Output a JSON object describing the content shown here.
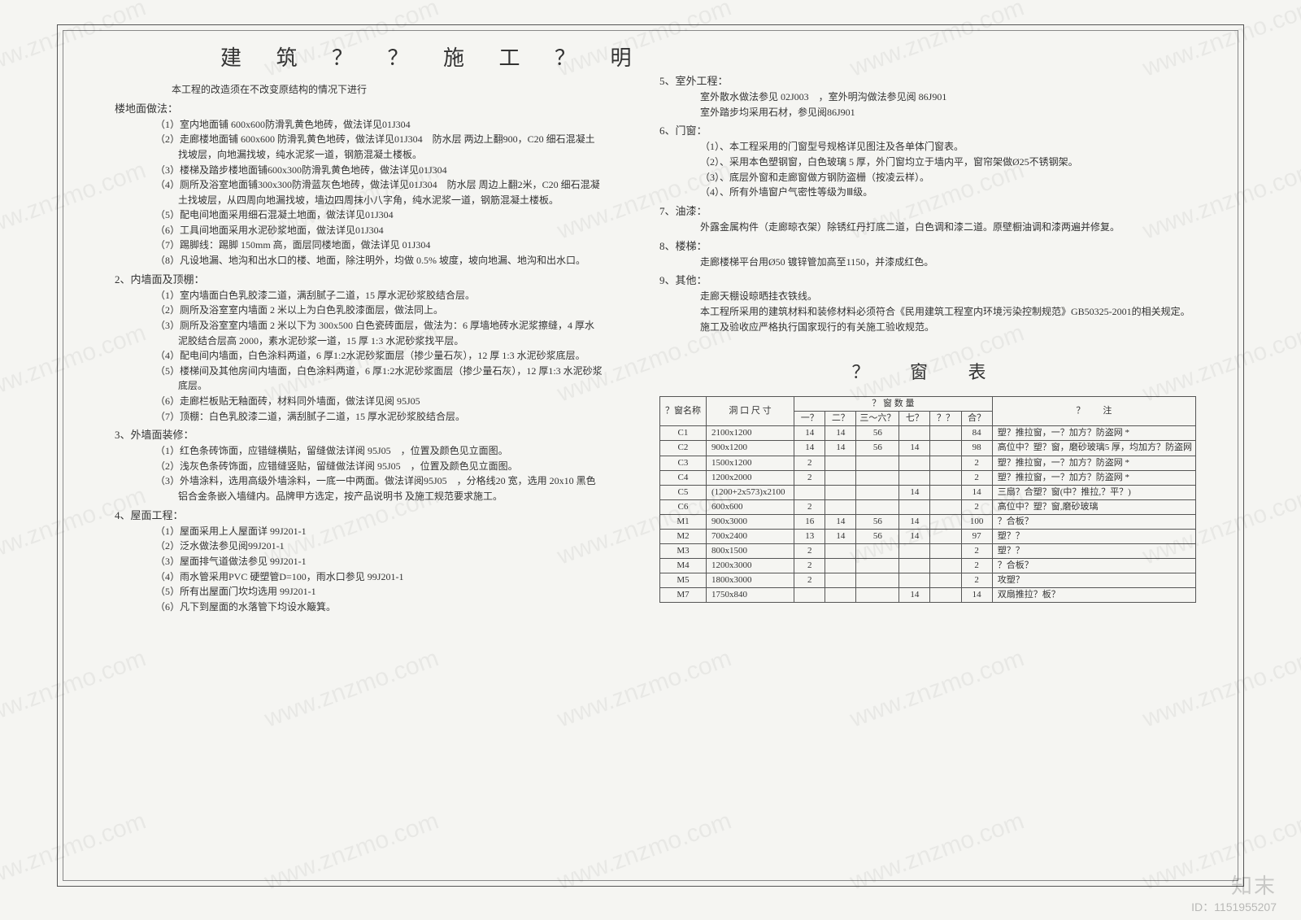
{
  "title": "建 筑 ？ ？ 施 工 ？ 明",
  "intro": "本工程的改造须在不改变原结构的情况下进行",
  "sections_left": [
    {
      "num": "",
      "label": "楼地面做法：",
      "items": [
        "（1）室内地面铺 600x600防滑乳黄色地砖，做法详见01J304",
        "（2）走廊楼地面铺 600x600 防滑乳黄色地砖，做法详见01J304　防水层 两边上翻900，C20 细石混凝土找坡层，向地漏找坡，纯水泥浆一道，钢筋混凝土楼板。",
        "（3）楼梯及踏步楼地面铺600x300防滑乳黄色地砖，做法详见01J304",
        "（4）厕所及浴室地面铺300x300防滑蓝灰色地砖，做法详见01J304　防水层 周边上翻2米，C20 细石混凝土找坡层，从四周向地漏找坡，墙边四周抹小八字角，纯水泥浆一道，钢筋混凝土楼板。",
        "（5）配电间地面采用细石混凝土地面，做法详见01J304",
        "（6）工具间地面采用水泥砂浆地面，做法详见01J304",
        "（7）踢脚线：踢脚 150mm 高，面层同楼地面，做法详见 01J304",
        "（8）凡设地漏、地沟和出水口的楼、地面，除注明外，均做 0.5% 坡度，坡向地漏、地沟和出水口。"
      ]
    },
    {
      "num": "2、",
      "label": "内墙面及顶棚：",
      "items": [
        "（1）室内墙面白色乳胶漆二道，满刮腻子二道，15 厚水泥砂浆胶结合层。",
        "（2）厕所及浴室室内墙面 2 米以上为白色乳胶漆面层，做法同上。",
        "（3）厕所及浴室室内墙面 2 米以下为 300x500 白色瓷砖面层，做法为：6 厚墙地砖水泥浆擦缝，4 厚水泥胶结合层高 2000，素水泥砂浆一道，15 厚 1:3 水泥砂浆找平层。",
        "（4）配电间内墙面，白色涂料两道，6 厚1:2水泥砂浆面层（掺少量石灰），12 厚 1:3 水泥砂浆底层。",
        "（5）楼梯间及其他房间内墙面，白色涂料两道，6 厚1:2水泥砂浆面层（掺少量石灰），12 厚1:3 水泥砂浆底层。",
        "（6）走廊栏板贴无釉面砖，材料同外墙面，做法详见阅 95J05",
        "（7）顶棚：白色乳胶漆二道，满刮腻子二道，15 厚水泥砂浆胶结合层。"
      ]
    },
    {
      "num": "3、",
      "label": "外墙面装修：",
      "items": [
        "（1）红色条砖饰面，应错缝横贴，留缝做法详阅 95J05　，位置及颜色见立面图。",
        "（2）浅灰色条砖饰面，应错缝竖贴，留缝做法详阅 95J05　，位置及颜色见立面图。",
        "（3）外墙涂料，选用高级外墙涂料，一底一中两面。做法详阅95J05　，分格线20 宽，选用 20x10 黑色铝合金条嵌入墙缝内。品牌甲方选定，按产品说明书 及施工规范要求施工。"
      ]
    },
    {
      "num": "4、",
      "label": "屋面工程：",
      "items": [
        "（1）屋面采用上人屋面详 99J201-1",
        "（2）泛水做法参见阅99J201-1",
        "（3）屋面排气道做法参见 99J201-1",
        "（4）雨水管采用PVC 硬塑管D=100，雨水口参见 99J201-1",
        "（5）所有出屋面门坎均选用 99J201-1",
        "（6）凡下到屋面的水落管下均设水簸箕。"
      ]
    }
  ],
  "sections_right": [
    {
      "num": "5、",
      "label": "室外工程：",
      "items": [
        "室外散水做法参见 02J003　，室外明沟做法参见阅 86J901",
        "室外踏步均采用石材，参见阅86J901"
      ]
    },
    {
      "num": "6、",
      "label": "门窗：",
      "items": [
        "（1）、本工程采用的门窗型号规格详见图注及各单体门窗表。",
        "（2）、采用本色塑钢窗，白色玻璃 5 厚，外门窗均立于墙内平，窗帘架做Ø25不锈钢架。",
        "（3）、底层外窗和走廊窗做方钢防盗栅（按凌云样）。",
        "（4）、所有外墙窗户气密性等级为Ⅲ级。"
      ]
    },
    {
      "num": "7、",
      "label": "油漆：",
      "items": [
        "外露金属构件（走廊晾衣架）除锈红丹打底二道，白色调和漆二道。原壁橱油调和漆两遍并修复。"
      ]
    },
    {
      "num": "8、",
      "label": "楼梯：",
      "items": [
        "走廊楼梯平台用Ø50 镀锌管加高至1150，并漆成红色。"
      ]
    },
    {
      "num": "9、",
      "label": "其他：",
      "items": [
        "走廊天棚设晾晒挂衣铁线。",
        "本工程所采用的建筑材料和装修材料必须符合《民用建筑工程室内环境污染控制规范》GB50325-2001的相关规定。",
        "施工及验收应严格执行国家现行的有关施工验收规范。"
      ]
    }
  ],
  "table": {
    "title": "？ 窗 表",
    "head1": [
      "？窗名称",
      "洞 口 尺 寸",
      "？ 窗 数 量",
      "？　　注"
    ],
    "head2": [
      "一？",
      "二？",
      "三～六？",
      "七？",
      "？？",
      "合？"
    ],
    "rows": [
      [
        "C1",
        "2100x1200",
        "14",
        "14",
        "56",
        "",
        "",
        "84",
        "塑？推拉窗，一？加方？防盗网 *"
      ],
      [
        "C2",
        "900x1200",
        "14",
        "14",
        "56",
        "14",
        "",
        "98",
        "高位中？塑？窗，磨砂玻璃5 厚，均加方？防盗网"
      ],
      [
        "C3",
        "1500x1200",
        "2",
        "",
        "",
        "",
        "",
        "2",
        "塑？推拉窗，一？加方？防盗网 *"
      ],
      [
        "C4",
        "1200x2000",
        "2",
        "",
        "",
        "",
        "",
        "2",
        "塑？推拉窗，一？加方？防盗网 *"
      ],
      [
        "C5",
        "(1200+2x573)x2100",
        "",
        "",
        "",
        "14",
        "",
        "14",
        "三扇？合塑？窗(中？推拉,？平？)"
      ],
      [
        "C6",
        "600x600",
        "2",
        "",
        "",
        "",
        "",
        "2",
        "高位中？塑？窗,磨砂玻璃"
      ],
      [
        "M1",
        "900x3000",
        "16",
        "14",
        "56",
        "14",
        "",
        "100",
        "？合板？"
      ],
      [
        "M2",
        "700x2400",
        "13",
        "14",
        "56",
        "14",
        "",
        "97",
        "塑？？"
      ],
      [
        "M3",
        "800x1500",
        "2",
        "",
        "",
        "",
        "",
        "2",
        "塑？？"
      ],
      [
        "M4",
        "1200x3000",
        "2",
        "",
        "",
        "",
        "",
        "2",
        "？合板？"
      ],
      [
        "M5",
        "1800x3000",
        "2",
        "",
        "",
        "",
        "",
        "2",
        "攻塑？"
      ],
      [
        "M7",
        "1750x840",
        "",
        "",
        "",
        "14",
        "",
        "14",
        "双扇推拉？板？"
      ]
    ]
  },
  "watermark_text": "www.znzmo.com",
  "logo": "知末",
  "idtag": "ID：1151955207"
}
